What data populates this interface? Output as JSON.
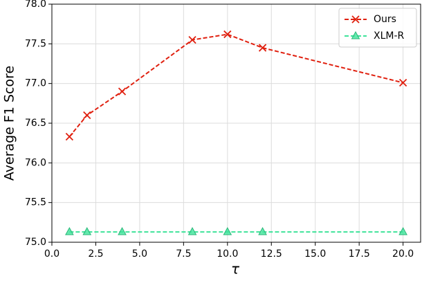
{
  "chart_data": {
    "type": "line",
    "x_label": "τ",
    "y_label": "Average F1 Score",
    "x": [
      1,
      2,
      4,
      8,
      10,
      12,
      20
    ],
    "series": [
      {
        "name": "Ours",
        "color": "#e0200f",
        "marker": "x",
        "values": [
          76.33,
          76.6,
          76.9,
          77.55,
          77.62,
          77.45,
          77.01
        ]
      },
      {
        "name": "XLM-R",
        "color": "#3ee39a",
        "marker": "triangle",
        "values": [
          75.13,
          75.13,
          75.13,
          75.13,
          75.13,
          75.13,
          75.13
        ]
      }
    ],
    "xlim": [
      0,
      21
    ],
    "ylim": [
      75,
      78
    ],
    "xticks": [
      {
        "value": 0,
        "label": "0.0"
      },
      2.5,
      {
        "value": 5,
        "label": "5.0"
      },
      7.5,
      {
        "value": 10,
        "label": "10.0"
      },
      12.5,
      {
        "value": 15,
        "label": "15.0"
      },
      17.5,
      {
        "value": 20,
        "label": "20.0"
      }
    ],
    "yticks": [
      {
        "value": 75,
        "label": "75.0"
      },
      75.5,
      {
        "value": 76,
        "label": "76.0"
      },
      76.5,
      {
        "value": 77,
        "label": "77.0"
      },
      77.5,
      {
        "value": 78,
        "label": "78.0"
      }
    ],
    "grid": true,
    "legend": "upper right"
  }
}
